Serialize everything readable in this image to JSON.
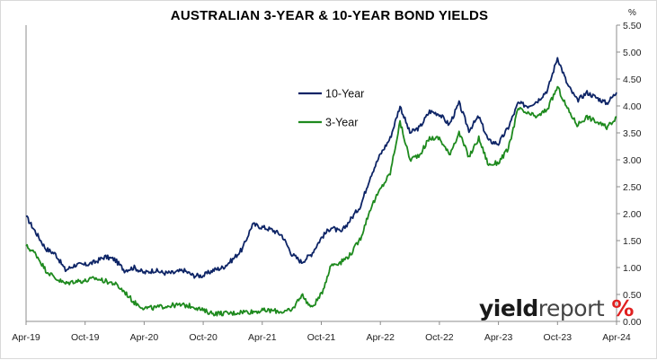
{
  "chart_data": {
    "type": "line",
    "title": "AUSTRALIAN 3-YEAR & 10-YEAR BOND YIELDS",
    "unit": "%",
    "x_tick_labels": [
      "Apr-19",
      "Oct-19",
      "Apr-20",
      "Oct-20",
      "Apr-21",
      "Oct-21",
      "Apr-22",
      "Oct-22",
      "Apr-23",
      "Oct-23",
      "Apr-24"
    ],
    "x_ticks": [
      "2019-04",
      "2019-10",
      "2020-04",
      "2020-10",
      "2021-04",
      "2021-10",
      "2022-04",
      "2022-10",
      "2023-04",
      "2023-10",
      "2024-04"
    ],
    "y_tick_labels": [
      "0.00",
      "0.50",
      "1.00",
      "1.50",
      "2.00",
      "2.50",
      "3.00",
      "3.50",
      "4.00",
      "4.50",
      "5.00",
      "5.50"
    ],
    "ylim": [
      0,
      5.5
    ],
    "y_axis_side": "right",
    "grid": false,
    "legend_position": "upper-middle",
    "x": [
      "2019-04",
      "2019-05",
      "2019-06",
      "2019-07",
      "2019-08",
      "2019-09",
      "2019-10",
      "2019-11",
      "2019-12",
      "2020-01",
      "2020-02",
      "2020-03",
      "2020-04",
      "2020-05",
      "2020-06",
      "2020-07",
      "2020-08",
      "2020-09",
      "2020-10",
      "2020-11",
      "2020-12",
      "2021-01",
      "2021-02",
      "2021-03",
      "2021-04",
      "2021-05",
      "2021-06",
      "2021-07",
      "2021-08",
      "2021-09",
      "2021-10",
      "2021-11",
      "2021-12",
      "2022-01",
      "2022-02",
      "2022-03",
      "2022-04",
      "2022-05",
      "2022-06",
      "2022-07",
      "2022-08",
      "2022-09",
      "2022-10",
      "2022-11",
      "2022-12",
      "2023-01",
      "2023-02",
      "2023-03",
      "2023-04",
      "2023-05",
      "2023-06",
      "2023-07",
      "2023-08",
      "2023-09",
      "2023-10",
      "2023-11",
      "2023-12",
      "2024-01",
      "2024-02",
      "2024-03",
      "2024-04"
    ],
    "series": [
      {
        "name": "10-Year",
        "color": "#0d2466",
        "values": [
          1.95,
          1.65,
          1.35,
          1.25,
          0.95,
          1.05,
          1.05,
          1.1,
          1.2,
          1.15,
          0.95,
          1.0,
          0.9,
          0.95,
          0.9,
          0.9,
          0.95,
          0.85,
          0.85,
          0.95,
          1.0,
          1.15,
          1.35,
          1.8,
          1.75,
          1.7,
          1.6,
          1.25,
          1.1,
          1.25,
          1.55,
          1.75,
          1.65,
          1.9,
          2.15,
          2.7,
          3.1,
          3.4,
          4.0,
          3.5,
          3.6,
          3.9,
          3.85,
          3.65,
          4.05,
          3.55,
          3.8,
          3.35,
          3.3,
          3.6,
          4.05,
          4.0,
          4.1,
          4.3,
          4.9,
          4.4,
          4.1,
          4.25,
          4.15,
          4.05,
          4.25
        ]
      },
      {
        "name": "3-Year",
        "color": "#1e8a1e",
        "values": [
          1.4,
          1.25,
          0.95,
          0.8,
          0.7,
          0.75,
          0.75,
          0.8,
          0.75,
          0.7,
          0.55,
          0.35,
          0.25,
          0.25,
          0.28,
          0.3,
          0.3,
          0.28,
          0.2,
          0.15,
          0.15,
          0.15,
          0.18,
          0.18,
          0.2,
          0.2,
          0.18,
          0.2,
          0.5,
          0.25,
          0.5,
          1.05,
          1.1,
          1.25,
          1.55,
          2.1,
          2.45,
          2.75,
          3.7,
          3.0,
          3.1,
          3.4,
          3.4,
          3.1,
          3.5,
          3.05,
          3.4,
          2.9,
          2.95,
          3.2,
          3.95,
          3.85,
          3.8,
          3.95,
          4.35,
          3.95,
          3.65,
          3.8,
          3.7,
          3.6,
          3.8
        ]
      }
    ]
  },
  "brand": {
    "main": "yield",
    "light": "report",
    "symbol": "%"
  }
}
